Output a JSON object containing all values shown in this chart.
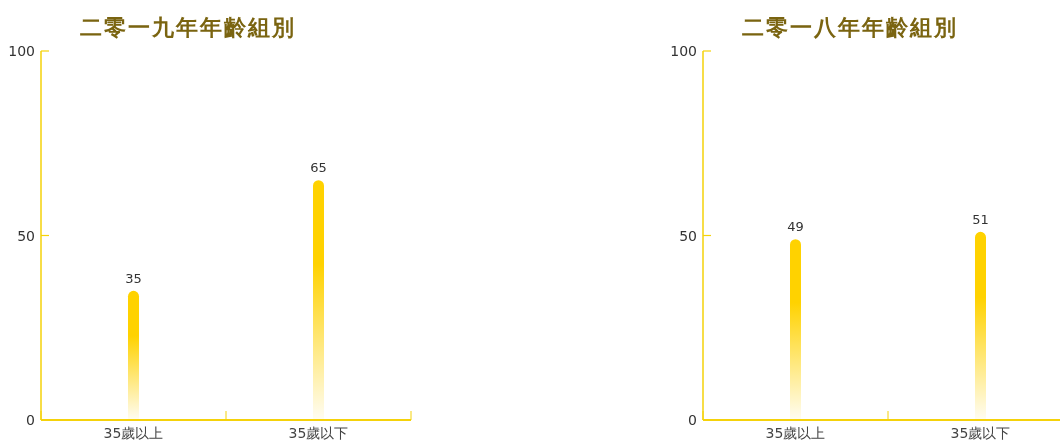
{
  "chart_data": [
    {
      "type": "bar",
      "title": "二零一九年年齡組別",
      "categories": [
        "35歲以上",
        "35歲以下"
      ],
      "values": [
        35,
        65
      ],
      "color": "#ffd200",
      "ylim": [
        0,
        100
      ],
      "yticks": [
        0,
        50,
        100
      ],
      "data_labels": true
    },
    {
      "type": "bar",
      "title": "二零一八年年齡組別",
      "categories": [
        "35歲以上",
        "35歲以下"
      ],
      "values": [
        49,
        51
      ],
      "color": "#ffd200",
      "ylim": [
        0,
        100
      ],
      "yticks": [
        0,
        50,
        100
      ],
      "data_labels": true
    }
  ]
}
